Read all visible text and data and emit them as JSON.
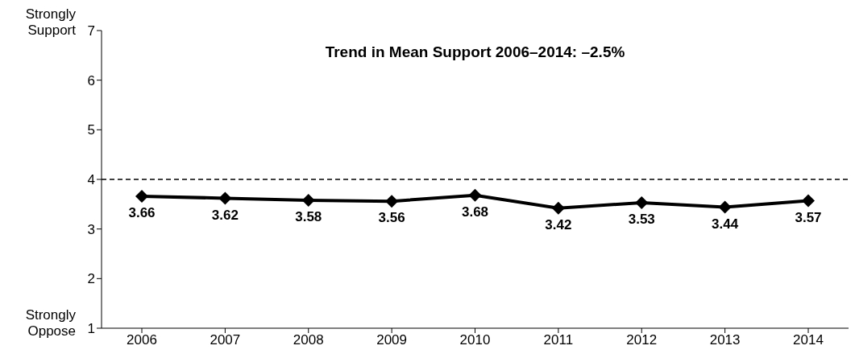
{
  "chart_data": {
    "type": "line",
    "title": "Trend in Mean Support 2006–2014:  –2.5%",
    "categories": [
      "2006",
      "2007",
      "2008",
      "2009",
      "2010",
      "2011",
      "2012",
      "2013",
      "2014"
    ],
    "series": [
      {
        "color": "#000000",
        "values": [
          3.66,
          3.62,
          3.58,
          3.56,
          3.68,
          3.42,
          3.53,
          3.44,
          3.57
        ]
      }
    ],
    "ylim": [
      1,
      7
    ],
    "yticks": [
      1,
      2,
      3,
      4,
      5,
      6,
      7
    ],
    "ref_lines": [
      {
        "axis": "y",
        "value": 4,
        "line_style": "dashed",
        "color": "#000000"
      }
    ],
    "annotations": [
      "Strongly Support",
      "Strongly Oppose"
    ],
    "data_labels": true,
    "marker": "diamond",
    "line_style": "solid",
    "grid": false,
    "legend": false
  }
}
